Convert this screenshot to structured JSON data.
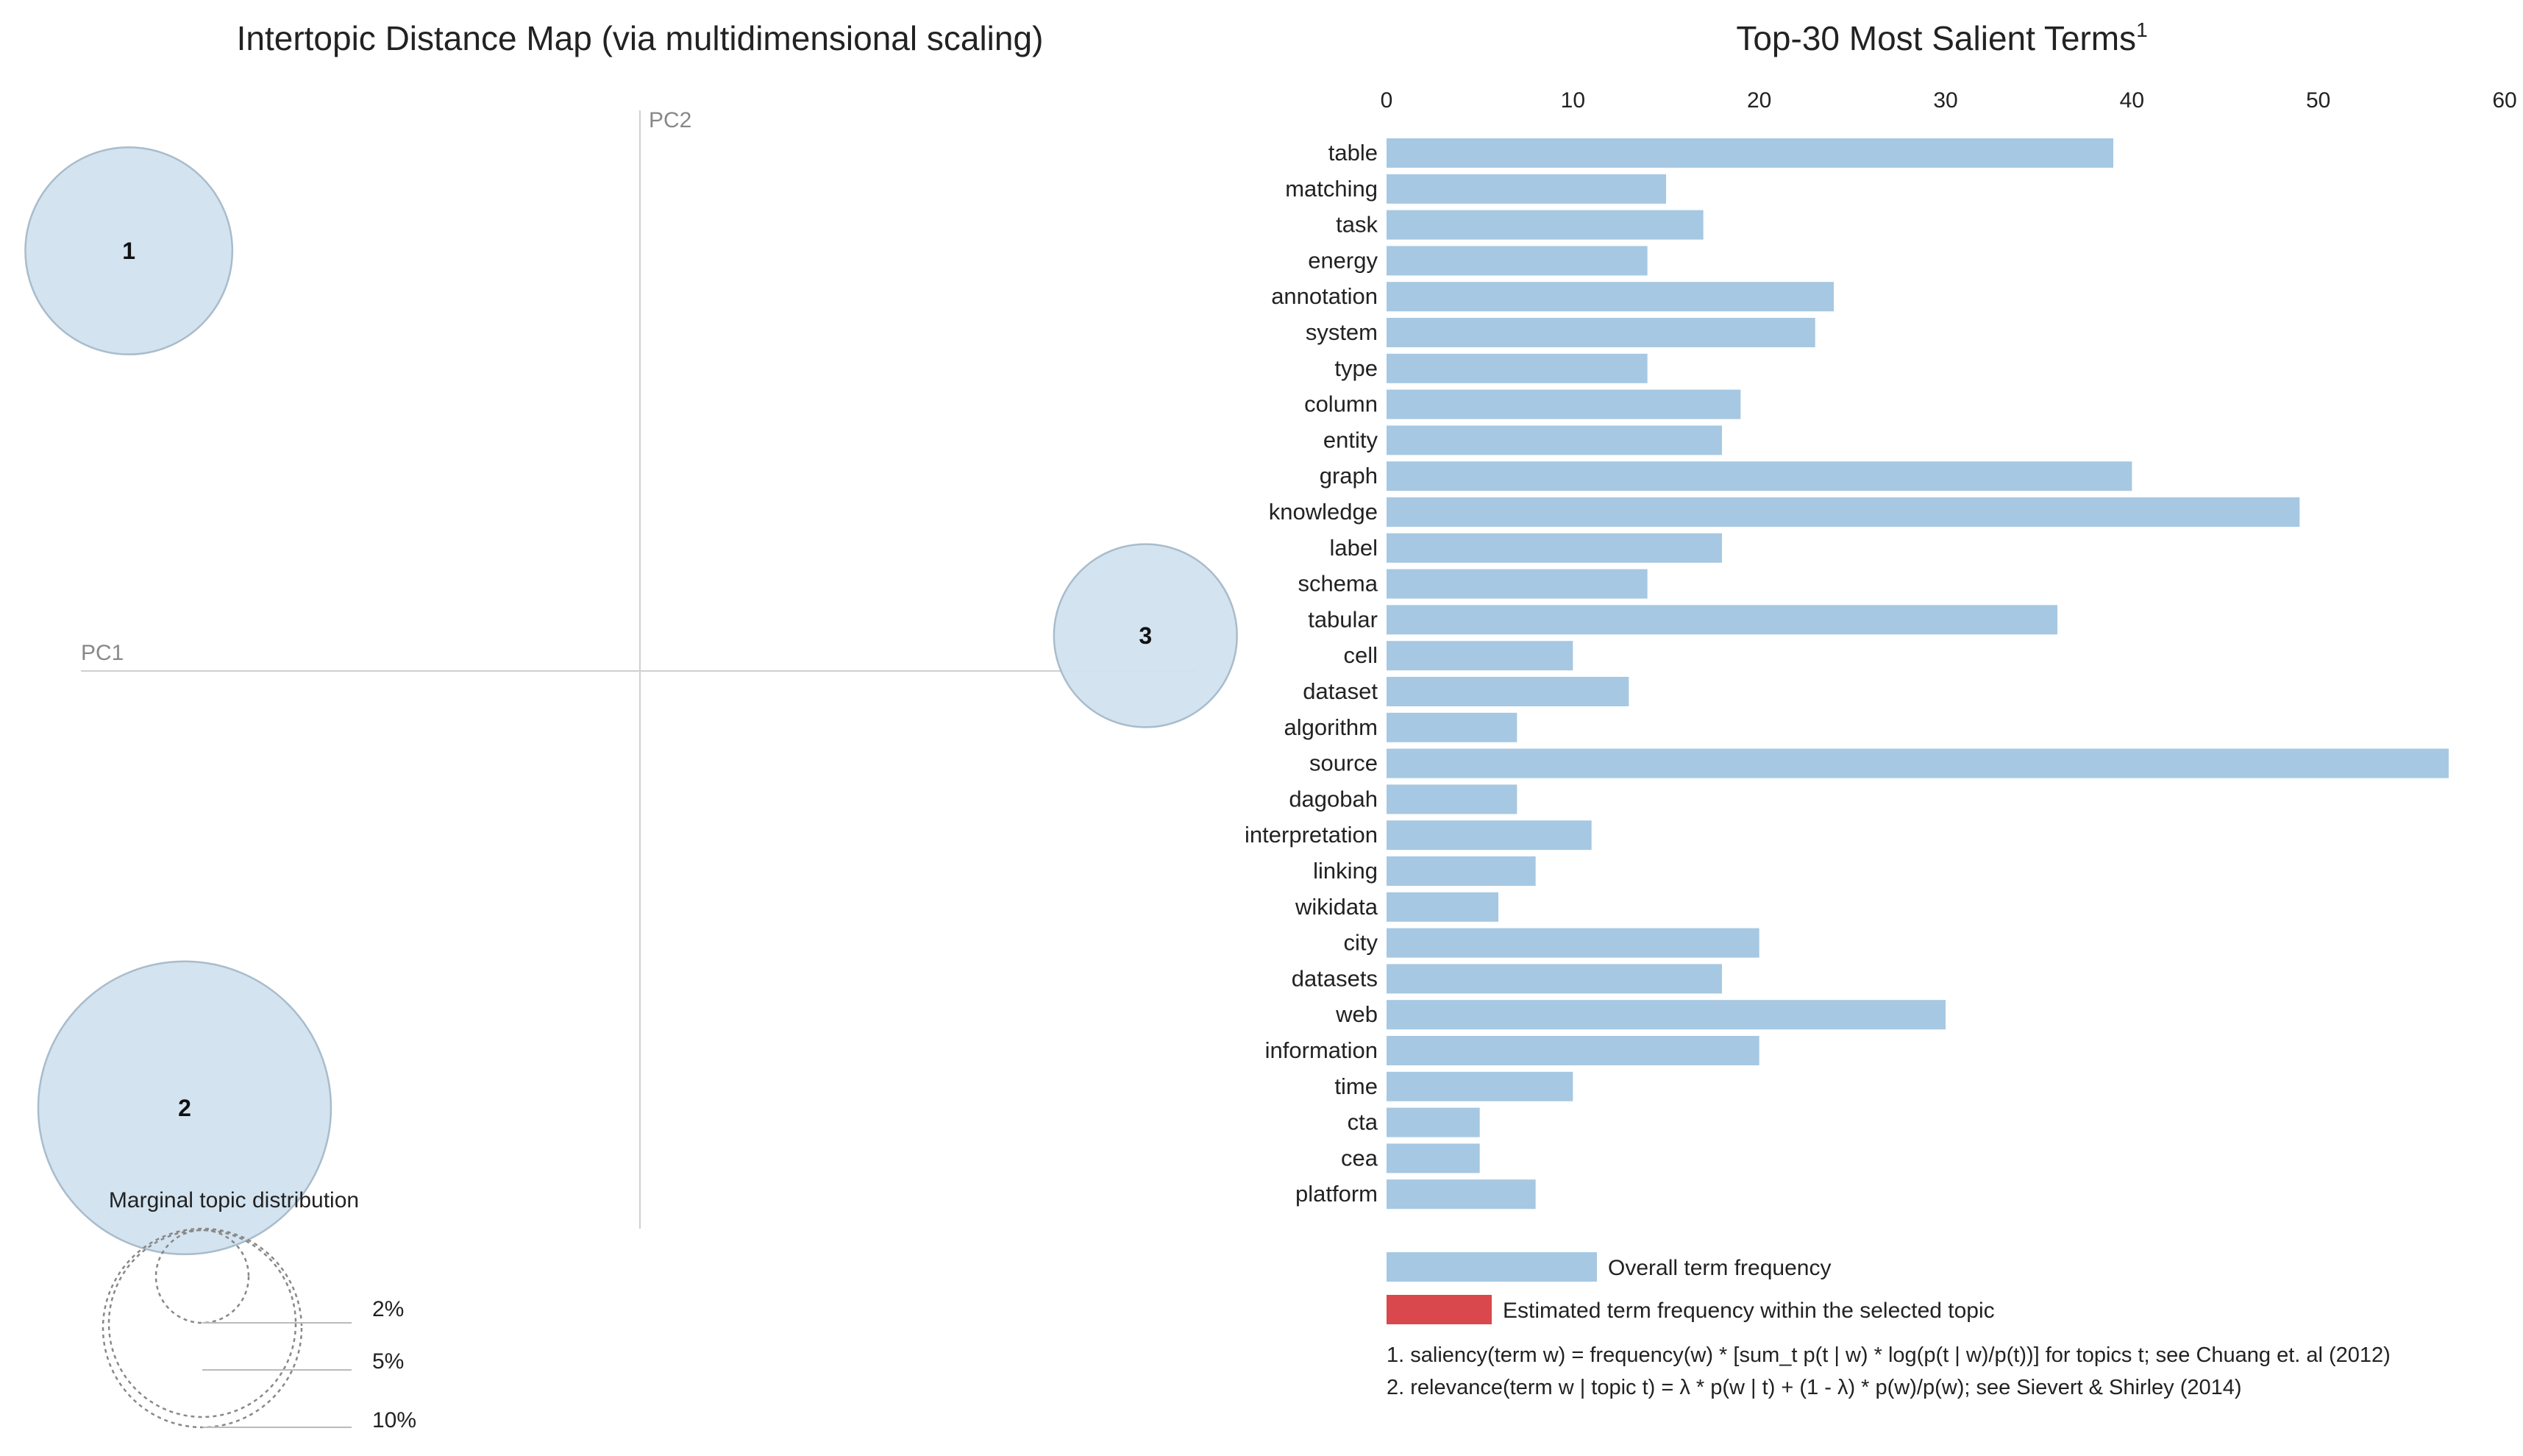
{
  "left_panel": {
    "title": "Intertopic Distance Map (via multidimensional scaling)",
    "pc1_label": "PC1",
    "pc2_label": "PC2",
    "marginal_title": "Marginal topic distribution",
    "marginal_legend": [
      "2%",
      "5%",
      "10%"
    ]
  },
  "right_panel": {
    "title": "Top-30 Most Salient Terms",
    "title_superscript": "1",
    "legend": {
      "overall": "Overall term frequency",
      "estimated": "Estimated term frequency within the selected topic"
    },
    "notes": [
      "1. saliency(term w) = frequency(w) * [sum_t p(t | w) * log(p(t | w)/p(t))] for topics t; see Chuang et. al (2012)",
      "2. relevance(term w | topic t) = λ * p(w | t) + (1 - λ) * p(w)/p(w); see Sievert & Shirley (2014)"
    ]
  },
  "colors": {
    "bubble": "#cfe1ef",
    "bubble_stroke": "#a9bccb",
    "bar_overall": "#a6c8e2",
    "bar_topic": "#d9484c"
  },
  "chart_data": [
    {
      "type": "scatter",
      "title": "Intertopic Distance Map (via multidimensional scaling)",
      "xlabel": "PC1",
      "ylabel": "PC2",
      "points": [
        {
          "label": "1",
          "x": -0.275,
          "y": 0.226,
          "size_percent": 5.5
        },
        {
          "label": "2",
          "x": -0.245,
          "y": -0.235,
          "size_percent": 11.0
        },
        {
          "label": "3",
          "x": 0.272,
          "y": 0.019,
          "size_percent": 4.3
        }
      ],
      "xlim": [
        -0.3,
        0.3
      ],
      "ylim": [
        -0.3,
        0.3
      ]
    },
    {
      "type": "bar",
      "orientation": "horizontal",
      "title": "Top-30 Most Salient Terms",
      "categories": [
        "table",
        "matching",
        "task",
        "energy",
        "annotation",
        "system",
        "type",
        "column",
        "entity",
        "graph",
        "knowledge",
        "label",
        "schema",
        "tabular",
        "cell",
        "dataset",
        "algorithm",
        "source",
        "dagobah",
        "interpretation",
        "linking",
        "wikidata",
        "city",
        "datasets",
        "web",
        "information",
        "time",
        "cta",
        "cea",
        "platform"
      ],
      "series": [
        {
          "name": "Overall term frequency",
          "values": [
            39,
            15,
            17,
            14,
            24,
            23,
            14,
            19,
            18,
            40,
            49,
            18,
            14,
            36,
            10,
            13,
            7,
            57,
            7,
            11,
            8,
            6,
            20,
            18,
            30,
            20,
            10,
            5,
            5,
            8
          ]
        }
      ],
      "xticks": [
        0,
        10,
        20,
        30,
        40,
        50,
        60
      ],
      "xlim": [
        0,
        60
      ],
      "grid": false,
      "legend_position": "bottom"
    }
  ]
}
